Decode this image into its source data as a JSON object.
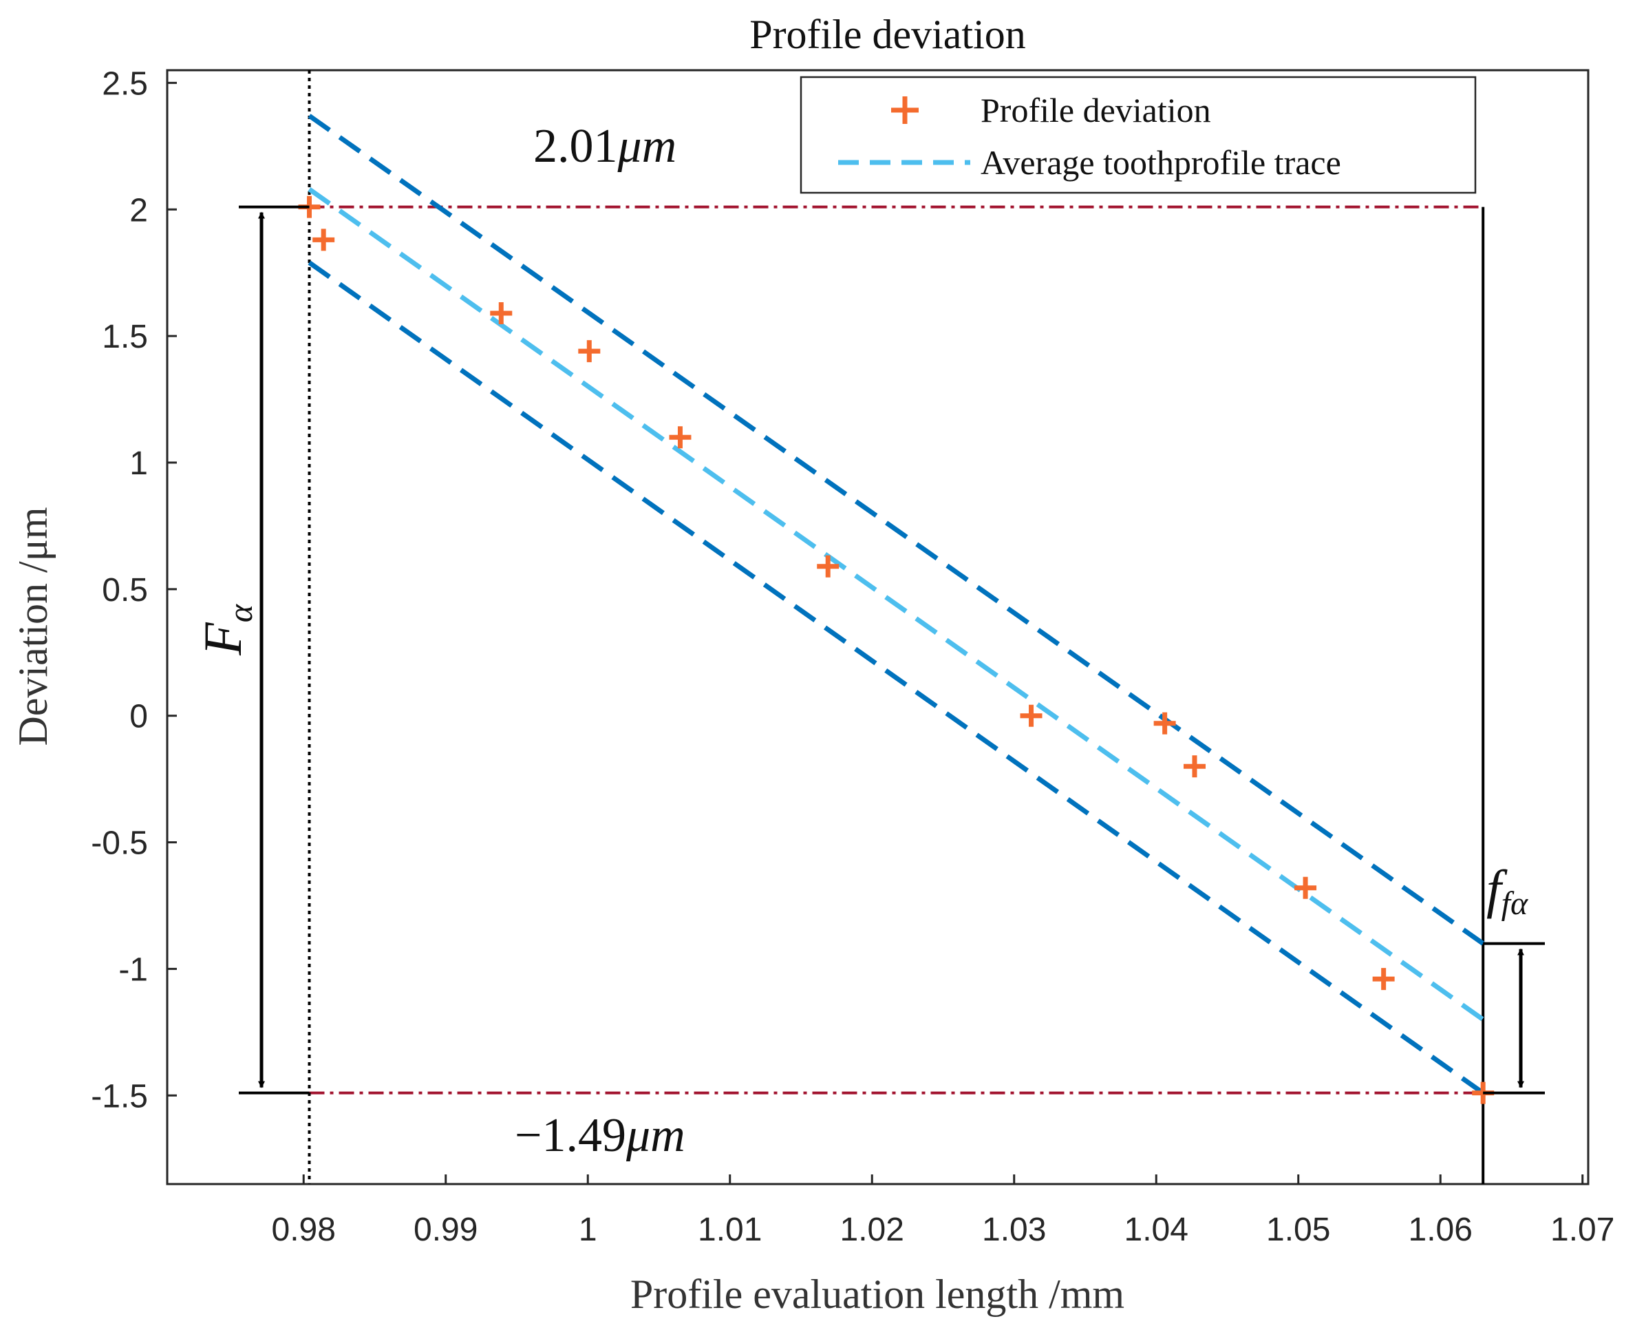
{
  "chart_data": {
    "type": "scatter",
    "title": "Profile deviation",
    "xlabel": "Profile evaluation length /mm",
    "ylabel": "Deviation /μm",
    "xlim": [
      0.9704,
      1.0704
    ],
    "ylim": [
      -1.85,
      2.55
    ],
    "xticks": [
      0.98,
      0.99,
      1,
      1.01,
      1.02,
      1.03,
      1.04,
      1.05,
      1.06,
      1.07
    ],
    "xtick_labels": [
      "0.98",
      "0.99",
      "1",
      "1.01",
      "1.02",
      "1.03",
      "1.04",
      "1.05",
      "1.06",
      "1.07"
    ],
    "yticks": [
      2.5,
      2,
      1.5,
      1,
      0.5,
      0,
      -0.5,
      -1,
      -1.5
    ],
    "ytick_labels": [
      "2.5",
      "2",
      "1.5",
      "1",
      "0.5",
      "0",
      "-0.5",
      "-1",
      "-1.5"
    ],
    "legend_position": "top-right",
    "colors": {
      "points": "#f46b2e",
      "trace": "#4dbeee",
      "bounds": "#0072bd",
      "limits": "#a2142f",
      "axes": "#262626"
    },
    "series": [
      {
        "name": "Profile deviation",
        "kind": "scatter",
        "marker": "plus",
        "x": [
          0.9804,
          0.9814,
          0.9939,
          1.0001,
          1.0065,
          1.0169,
          1.0312,
          1.0406,
          1.0427,
          1.0505,
          1.056,
          1.063
        ],
        "y": [
          2.01,
          1.88,
          1.59,
          1.44,
          1.1,
          0.59,
          0.0,
          -0.03,
          -0.2,
          -0.68,
          -1.04,
          -1.49
        ]
      },
      {
        "name": "Average toothprofile trace",
        "kind": "line",
        "style": "dashed",
        "x": [
          0.9804,
          1.063
        ],
        "y": [
          2.08,
          -1.2
        ]
      }
    ],
    "bounds": {
      "style": "dashed",
      "upper": {
        "x": [
          0.9804,
          1.063
        ],
        "y": [
          2.37,
          -0.9
        ]
      },
      "lower": {
        "x": [
          0.9804,
          1.063
        ],
        "y": [
          1.79,
          -1.49
        ]
      }
    },
    "reference_lines": {
      "max": 2.01,
      "min": -1.49,
      "style": "dash-dot",
      "x_start": 0.9804,
      "x_end": 1.063
    },
    "vertical_lines": [
      {
        "x": 0.9804,
        "style": "dotted"
      },
      {
        "x": 1.063,
        "style": "solid"
      }
    ],
    "annotations": {
      "max_value": "2.01",
      "min_value": "−1.49",
      "unit": "μm",
      "total_deviation_symbol": "F",
      "total_deviation_subscript": "α",
      "form_deviation_symbol": "f",
      "form_deviation_subscript": "fα"
    }
  }
}
